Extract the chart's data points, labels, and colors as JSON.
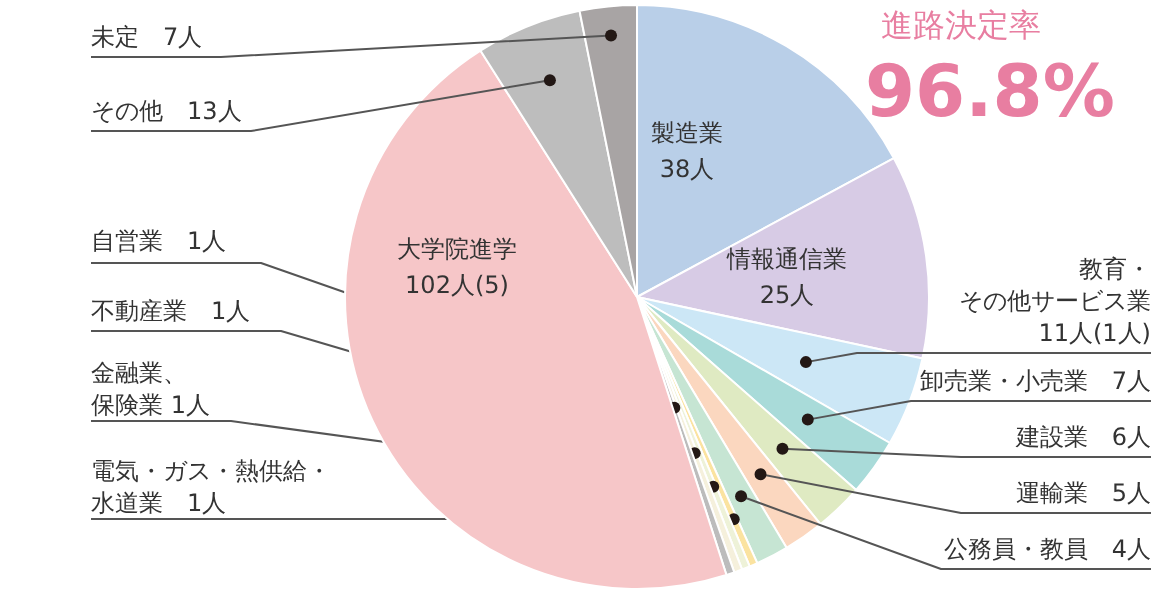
{
  "chart_data": {
    "type": "pie",
    "categories": [
      "製造業",
      "情報通信業",
      "教育・その他サービス業",
      "卸売業・小売業",
      "建設業",
      "運輸業",
      "公務員・教員",
      "電気・ガス・熱供給・水道業",
      "金融業、保険業",
      "不動産業",
      "自営業",
      "大学院進学",
      "その他",
      "未定"
    ],
    "values": [
      38,
      25,
      11,
      7,
      6,
      5,
      4,
      1,
      1,
      1,
      1,
      102,
      13,
      7
    ],
    "value_labels": [
      "38人",
      "25人",
      "11人(1人)",
      "7人",
      "6人",
      "5人",
      "4人",
      "1人",
      "1人",
      "1人",
      "1人",
      "102人(5)",
      "13人",
      "7人"
    ],
    "colors": [
      "#b9cfe8",
      "#d7cbe5",
      "#cce7f6",
      "#a9dbd9",
      "#dfeac2",
      "#fbd7bf",
      "#c6e5d3",
      "#fbe3a0",
      "#eef2d8",
      "#f5f0dc",
      "#bcbcbc",
      "#f6c6c8",
      "#bdbdbd",
      "#a8a4a4"
    ],
    "annotations": [
      "進路決定率",
      "96.8%"
    ]
  }
}
